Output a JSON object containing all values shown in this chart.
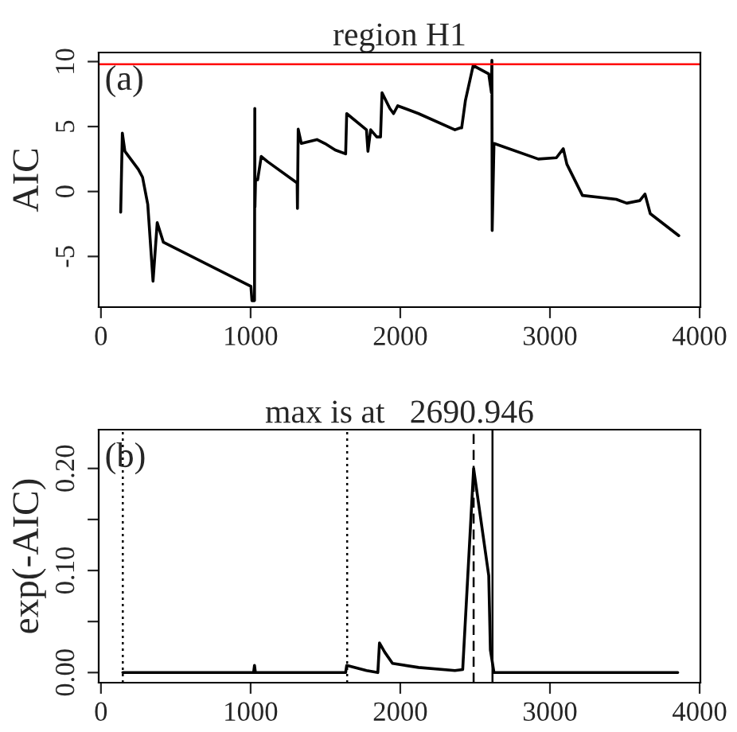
{
  "chart_data": [
    {
      "type": "line",
      "title": "region H1",
      "ylabel": "AIC",
      "annotations": [
        "(a)"
      ],
      "xlim": [
        -15,
        4005
      ],
      "ylim": [
        -8.9,
        10.7
      ],
      "xticks": [
        0,
        1000,
        2000,
        3000,
        4000
      ],
      "yticks": [
        -5,
        0,
        5,
        10
      ],
      "ref_lines": [
        {
          "axis": "y",
          "value": 9.8,
          "color": "#ff0000",
          "line_style": "solid"
        }
      ],
      "series": [
        {
          "color": "#000000",
          "line_style": "solid",
          "x": [
            132,
            143,
            160,
            250,
            278,
            313,
            348,
            376,
            417,
            1002,
            1009,
            1026,
            1028,
            1029,
            1033,
            1047,
            1071,
            1113,
            1311,
            1313,
            1318,
            1339,
            1443,
            1496,
            1565,
            1635,
            1642,
            1774,
            1784,
            1802,
            1843,
            1868,
            1878,
            1930,
            1955,
            1983,
            2122,
            2365,
            2400,
            2410,
            2435,
            2487,
            2591,
            2609,
            2612,
            2614,
            2626,
            2922,
            3043,
            3089,
            3113,
            3217,
            3443,
            3513,
            3600,
            3635,
            3670,
            3861
          ],
          "values": [
            -1.6,
            4.5,
            3.1,
            1.7,
            1.1,
            -1.0,
            -6.9,
            -2.4,
            -3.9,
            -7.3,
            -8.4,
            -8.4,
            6.4,
            -1.2,
            0.9,
            0.9,
            2.7,
            2.3,
            0.65,
            -1.3,
            4.8,
            3.7,
            4.0,
            3.7,
            3.2,
            2.9,
            6.0,
            4.75,
            3.1,
            4.75,
            4.2,
            4.2,
            7.6,
            6.4,
            6.0,
            6.6,
            6.0,
            4.75,
            4.9,
            4.9,
            7.0,
            9.7,
            9.05,
            7.6,
            10.1,
            -3.0,
            3.7,
            2.5,
            2.6,
            3.3,
            2.1,
            -0.3,
            -0.6,
            -0.9,
            -0.7,
            -0.2,
            -1.7,
            -3.4
          ]
        }
      ]
    },
    {
      "type": "line",
      "title": "max is at   2690.946",
      "ylabel": "exp(-AIC)",
      "annotations": [
        "(b)"
      ],
      "xlim": [
        -15,
        4005
      ],
      "ylim": [
        -0.0099,
        0.238
      ],
      "xticks": [
        0,
        1000,
        2000,
        3000,
        4000
      ],
      "yticks": [
        {
          "value": 0.0,
          "label": "0.00"
        },
        {
          "value": 0.05,
          "label": null
        },
        {
          "value": 0.1,
          "label": "0.10"
        },
        {
          "value": 0.15,
          "label": null
        },
        {
          "value": 0.2,
          "label": "0.20"
        }
      ],
      "ref_lines": [
        {
          "axis": "x",
          "value": 146,
          "color": "#000000",
          "line_style": "dotted"
        },
        {
          "axis": "x",
          "value": 1645,
          "color": "#000000",
          "line_style": "dotted"
        },
        {
          "axis": "x",
          "value": 2490,
          "color": "#000000",
          "line_style": "dashed"
        },
        {
          "axis": "x",
          "value": 2616,
          "color": "#000000",
          "line_style": "solid"
        }
      ],
      "series": [
        {
          "color": "#000000",
          "line_style": "solid",
          "x": [
            146,
            1020,
            1026,
            1032,
            1635,
            1642,
            1774,
            1850,
            1861,
            1896,
            1948,
            2122,
            2365,
            2417,
            2490,
            2591,
            2602,
            2626,
            3854
          ],
          "values": [
            0,
            0,
            0.007,
            0,
            0,
            0.007,
            0.002,
            0,
            0.029,
            0.02,
            0.009,
            0.005,
            0.002,
            0.003,
            0.2,
            0.095,
            0.022,
            0,
            0
          ]
        }
      ]
    }
  ]
}
